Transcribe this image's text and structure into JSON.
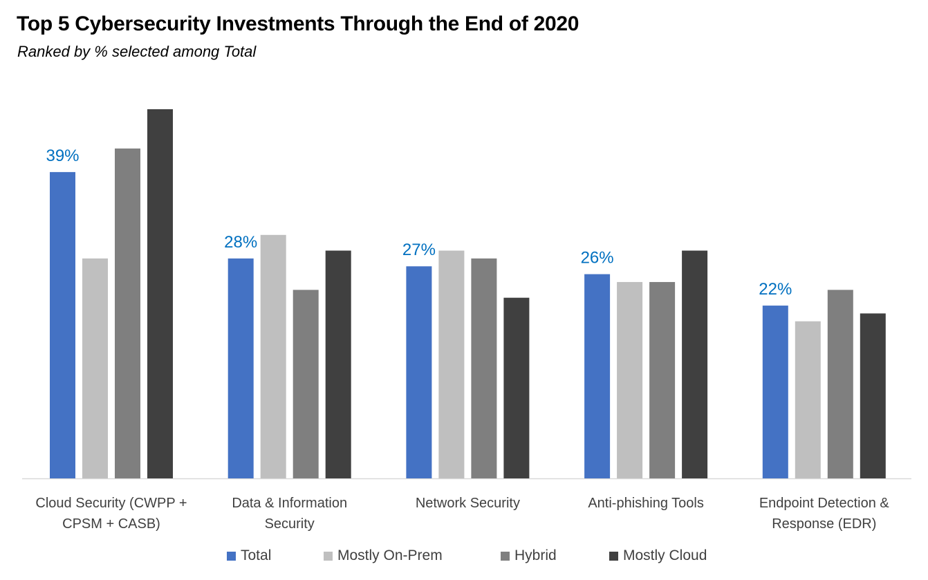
{
  "title": "Top 5 Cybersecurity Investments Through the End of 2020",
  "subtitle": "Ranked by % selected among Total",
  "chart_data": {
    "type": "bar",
    "categories": [
      [
        "Cloud Security (CWPP +",
        "CPSM + CASB)"
      ],
      [
        "Data & Information",
        "Security"
      ],
      [
        "Network Security"
      ],
      [
        "Anti-phishing Tools"
      ],
      [
        "Endpoint Detection &",
        "Response (EDR)"
      ]
    ],
    "series": [
      {
        "name": "Total",
        "color": "#4472C4",
        "values": [
          39,
          28,
          27,
          26,
          22
        ],
        "labels": [
          "39%",
          "28%",
          "27%",
          "26%",
          "22%"
        ]
      },
      {
        "name": "Mostly On-Prem",
        "color": "#BFBFBF",
        "values": [
          28,
          31,
          29,
          25,
          20
        ]
      },
      {
        "name": "Hybrid",
        "color": "#7F7F7F",
        "values": [
          42,
          24,
          28,
          25,
          24
        ]
      },
      {
        "name": "Mostly Cloud",
        "color": "#404040",
        "values": [
          47,
          29,
          23,
          29,
          21
        ]
      }
    ],
    "ylim": [
      0,
      50
    ],
    "grid": false,
    "legend_position": "bottom",
    "data_label_color": "#0070C0"
  }
}
